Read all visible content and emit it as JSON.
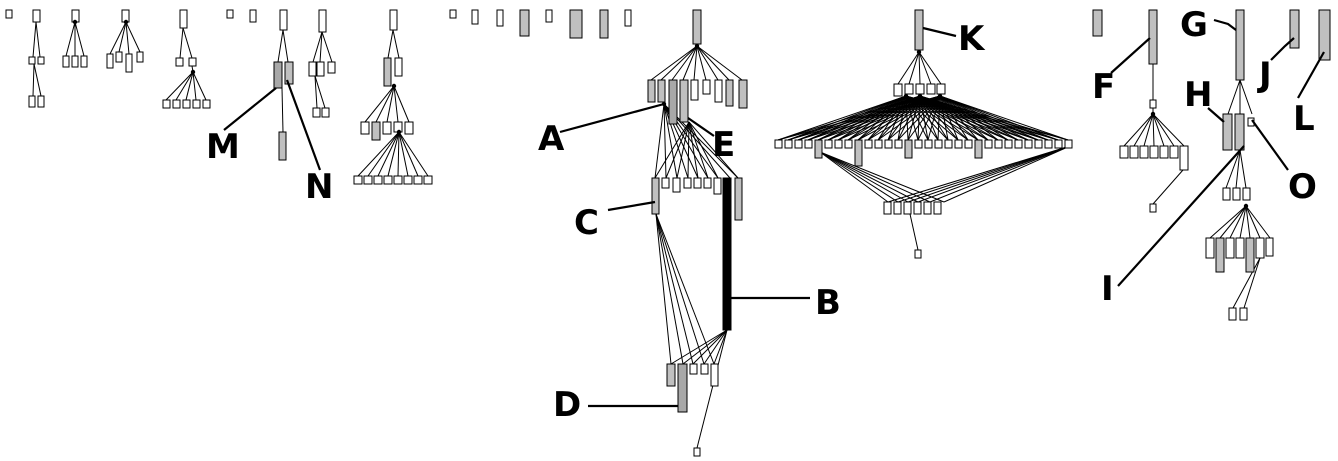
{
  "colors": {
    "background": "#ffffff",
    "node_fill_light": "#ffffff",
    "node_fill_gray": "#c0c0c0",
    "node_fill_dark": "#a8a8a8",
    "node_fill_black": "#000000",
    "line": "#000000"
  },
  "callouts": {
    "A": "A",
    "B": "B",
    "C": "C",
    "D": "D",
    "E": "E",
    "F": "F",
    "G": "G",
    "H": "H",
    "I": "I",
    "J": "J",
    "K": "K",
    "L": "L",
    "M": "M",
    "N": "N",
    "O": "O"
  }
}
